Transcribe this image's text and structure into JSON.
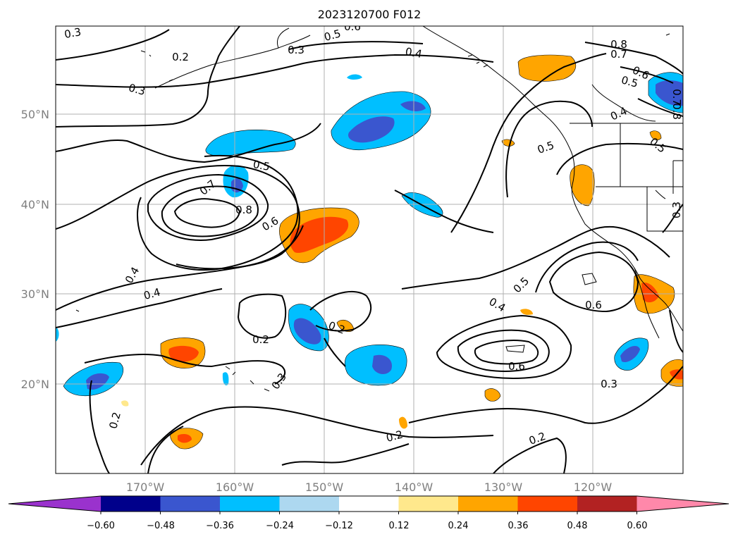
{
  "title": "2023120700 F012",
  "lat_ticks": [
    "50°N",
    "40°N",
    "30°N",
    "20°N"
  ],
  "lon_ticks": [
    "170°W",
    "160°W",
    "150°W",
    "140°W",
    "130°W",
    "120°W"
  ],
  "colorbar": {
    "tick_labels": [
      "−0.60",
      "−0.48",
      "−0.36",
      "−0.24",
      "−0.12",
      "0.12",
      "0.24",
      "0.36",
      "0.48",
      "0.60"
    ],
    "colors": [
      "#9a32cd",
      "#00008b",
      "#3a56cf",
      "#00bfff",
      "#add8f0",
      "#ffffff",
      "#ffe88c",
      "#ffa500",
      "#ff4500",
      "#b22222",
      "#ff88aa"
    ]
  },
  "contour_labels": [
    "0.3",
    "0.5",
    "0.6",
    "0.2",
    "0.3",
    "0.4",
    "0.8",
    "0.7",
    "0.6",
    "0.5",
    "0.4",
    "0.5",
    "0.7",
    "0.8",
    "0.5",
    "0.3",
    "0.7",
    "0.8",
    "0.5",
    "0.6",
    "0.4",
    "0.4",
    "0.2",
    "0.2",
    "0.5",
    "0.4",
    "0.6",
    "0.6",
    "0.3",
    "0.2",
    "0.3",
    "0.2",
    "0.2",
    "0.3"
  ],
  "colors": {
    "grid": "#b0b0b0",
    "contour": "#000000",
    "coast": "#000000"
  }
}
